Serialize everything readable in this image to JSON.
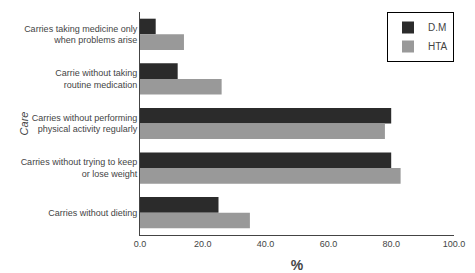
{
  "chart_data": {
    "type": "bar",
    "orientation": "horizontal",
    "categories": [
      "Carries taking medicine only\n when problems arise",
      "Carrie without taking\n routine medication",
      "Carries without performing\n physical activity regularly",
      "Carries without trying to keep\n or lose weight",
      "Carries without dieting"
    ],
    "series": [
      {
        "name": "D.M",
        "color": "#2b2b2b",
        "values": [
          5.0,
          12.0,
          80.0,
          80.0,
          25.0
        ]
      },
      {
        "name": "HTA",
        "color": "#999999",
        "values": [
          14.0,
          26.0,
          78.0,
          83.0,
          35.0
        ]
      }
    ],
    "xlabel": "%",
    "ylabel": "Care",
    "xlim": [
      0,
      100
    ],
    "xticks": [
      {
        "value": 0,
        "label": "0.0"
      },
      {
        "value": 20,
        "label": "20.0"
      },
      {
        "value": 40,
        "label": "40.0"
      },
      {
        "value": 60,
        "label": "60.0"
      },
      {
        "value": 80,
        "label": "80.0"
      },
      {
        "value": 100,
        "label": "100.0"
      }
    ],
    "legend": "upper right",
    "grid": false
  }
}
